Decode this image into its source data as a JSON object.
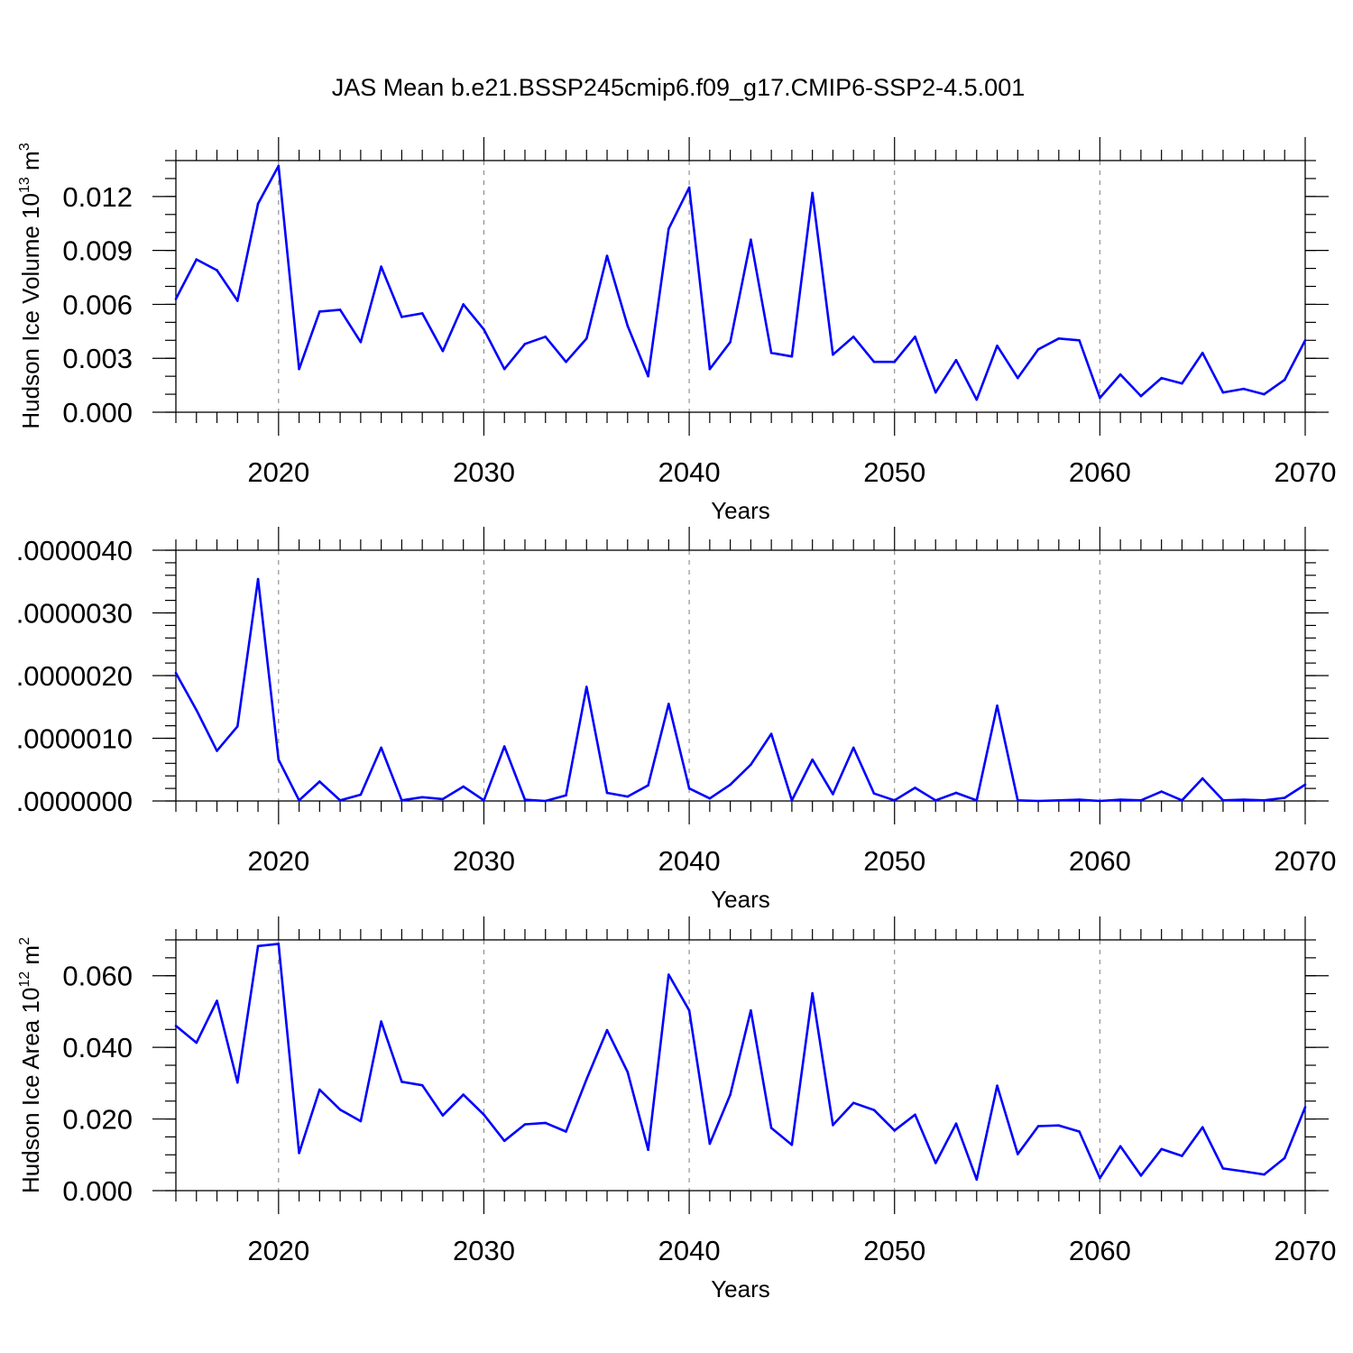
{
  "title": "JAS Mean b.e21.BSSP245cmip6.f09_g17.CMIP6-SSP2-4.5.001",
  "colors": {
    "series": "#0000ff",
    "frame": "#000000",
    "grid": "#888888"
  },
  "chart_data": [
    {
      "type": "line",
      "ylabel": {
        "text": "Hudson Ice Volume 10",
        "sup": "13",
        "unit": " m",
        "unit_sup": "3"
      },
      "xlabel": "Years",
      "xlim": [
        2015,
        2070
      ],
      "ylim": [
        0.0,
        0.014
      ],
      "yticks": [
        0.0,
        0.003,
        0.006,
        0.009,
        0.012
      ],
      "ytick_labels": [
        "0.000",
        "0.003",
        "0.006",
        "0.009",
        "0.012"
      ],
      "yminor_step": 0.001,
      "xticks": [
        2020,
        2030,
        2040,
        2050,
        2060,
        2070
      ],
      "xtick_labels": [
        "2020",
        "2030",
        "2040",
        "2050",
        "2060",
        "2070"
      ],
      "xgrid": [
        2020,
        2030,
        2040,
        2050,
        2060
      ],
      "x": [
        2015,
        2016,
        2017,
        2018,
        2019,
        2020,
        2021,
        2022,
        2023,
        2024,
        2025,
        2026,
        2027,
        2028,
        2029,
        2030,
        2031,
        2032,
        2033,
        2034,
        2035,
        2036,
        2037,
        2038,
        2039,
        2040,
        2041,
        2042,
        2043,
        2044,
        2045,
        2046,
        2047,
        2048,
        2049,
        2050,
        2051,
        2052,
        2053,
        2054,
        2055,
        2056,
        2057,
        2058,
        2059,
        2060,
        2061,
        2062,
        2063,
        2064,
        2065,
        2066,
        2067,
        2068,
        2069,
        2070
      ],
      "values": [
        0.0063,
        0.0085,
        0.0079,
        0.0062,
        0.0116,
        0.0137,
        0.0024,
        0.0056,
        0.0057,
        0.0039,
        0.0081,
        0.0053,
        0.0055,
        0.0034,
        0.006,
        0.0046,
        0.0024,
        0.0038,
        0.0042,
        0.0028,
        0.0041,
        0.0087,
        0.0048,
        0.002,
        0.0102,
        0.0125,
        0.0024,
        0.0039,
        0.0096,
        0.0033,
        0.0031,
        0.0122,
        0.0032,
        0.0042,
        0.0028,
        0.0028,
        0.0042,
        0.0011,
        0.0029,
        0.0007,
        0.0037,
        0.0019,
        0.0035,
        0.0041,
        0.004,
        0.0008,
        0.0021,
        0.0009,
        0.0019,
        0.0016,
        0.0033,
        0.0011,
        0.0013,
        0.001,
        0.0018,
        0.004
      ]
    },
    {
      "type": "line",
      "ylabel": null,
      "xlabel": "Years",
      "xlim": [
        2015,
        2070
      ],
      "ylim": [
        0.0,
        4e-06
      ],
      "yticks": [
        0.0,
        1e-06,
        2e-06,
        3e-06,
        4e-06
      ],
      "ytick_labels": [
        ".0000000",
        ".0000010",
        ".0000020",
        ".0000030",
        ".0000040"
      ],
      "yminor_step": 2e-07,
      "xticks": [
        2020,
        2030,
        2040,
        2050,
        2060,
        2070
      ],
      "xtick_labels": [
        "2020",
        "2030",
        "2040",
        "2050",
        "2060",
        "2070"
      ],
      "xgrid": [
        2020,
        2030,
        2040,
        2050,
        2060
      ],
      "x": [
        2015,
        2016,
        2017,
        2018,
        2019,
        2020,
        2021,
        2022,
        2023,
        2024,
        2025,
        2026,
        2027,
        2028,
        2029,
        2030,
        2031,
        2032,
        2033,
        2034,
        2035,
        2036,
        2037,
        2038,
        2039,
        2040,
        2041,
        2042,
        2043,
        2044,
        2045,
        2046,
        2047,
        2048,
        2049,
        2050,
        2051,
        2052,
        2053,
        2054,
        2055,
        2056,
        2057,
        2058,
        2059,
        2060,
        2061,
        2062,
        2063,
        2064,
        2065,
        2066,
        2067,
        2068,
        2069,
        2070
      ],
      "values": [
        2.04e-06,
        1.45e-06,
        8e-07,
        1.19e-06,
        3.54e-06,
        6.6e-07,
        1e-08,
        3.1e-07,
        1e-08,
        1e-07,
        8.5e-07,
        1e-08,
        6e-08,
        3e-08,
        2.3e-07,
        1e-08,
        8.7e-07,
        2e-08,
        0.0,
        9e-08,
        1.82e-06,
        1.3e-07,
        7e-08,
        2.5e-07,
        1.55e-06,
        2e-07,
        4e-08,
        2.6e-07,
        5.8e-07,
        1.07e-06,
        1e-08,
        6.6e-07,
        1.1e-07,
        8.5e-07,
        1.2e-07,
        1e-08,
        2.1e-07,
        1e-08,
        1.3e-07,
        1e-08,
        1.52e-06,
        1e-08,
        0.0,
        1e-08,
        2e-08,
        0.0,
        2e-08,
        1e-08,
        1.5e-07,
        1e-08,
        3.6e-07,
        1e-08,
        2e-08,
        1e-08,
        5e-08,
        2.6e-07
      ]
    },
    {
      "type": "line",
      "ylabel": {
        "text": "Hudson Ice Area 10",
        "sup": "12",
        "unit": " m",
        "unit_sup": "2"
      },
      "xlabel": "Years",
      "xlim": [
        2015,
        2070
      ],
      "ylim": [
        0.0,
        0.07
      ],
      "yticks": [
        0.0,
        0.02,
        0.04,
        0.06
      ],
      "ytick_labels": [
        "0.000",
        "0.020",
        "0.040",
        "0.060"
      ],
      "yminor_step": 0.005,
      "xticks": [
        2020,
        2030,
        2040,
        2050,
        2060,
        2070
      ],
      "xtick_labels": [
        "2020",
        "2030",
        "2040",
        "2050",
        "2060",
        "2070"
      ],
      "xgrid": [
        2020,
        2030,
        2040,
        2050,
        2060
      ],
      "x": [
        2015,
        2016,
        2017,
        2018,
        2019,
        2020,
        2021,
        2022,
        2023,
        2024,
        2025,
        2026,
        2027,
        2028,
        2029,
        2030,
        2031,
        2032,
        2033,
        2034,
        2035,
        2036,
        2037,
        2038,
        2039,
        2040,
        2041,
        2042,
        2043,
        2044,
        2045,
        2046,
        2047,
        2048,
        2049,
        2050,
        2051,
        2052,
        2053,
        2054,
        2055,
        2056,
        2057,
        2058,
        2059,
        2060,
        2061,
        2062,
        2063,
        2064,
        2065,
        2066,
        2067,
        2068,
        2069,
        2070
      ],
      "values": [
        0.046,
        0.0413,
        0.053,
        0.0302,
        0.0683,
        0.0689,
        0.0105,
        0.0282,
        0.0226,
        0.0194,
        0.0472,
        0.0304,
        0.0294,
        0.021,
        0.0268,
        0.0212,
        0.0139,
        0.0185,
        0.0189,
        0.0165,
        0.0311,
        0.0448,
        0.0331,
        0.0114,
        0.0603,
        0.0503,
        0.0131,
        0.0268,
        0.0503,
        0.0175,
        0.0128,
        0.0551,
        0.0183,
        0.0245,
        0.0225,
        0.0168,
        0.0212,
        0.0077,
        0.0187,
        0.0031,
        0.0293,
        0.0102,
        0.018,
        0.0182,
        0.0165,
        0.0035,
        0.0124,
        0.0042,
        0.0116,
        0.0097,
        0.0177,
        0.0062,
        0.0054,
        0.0045,
        0.0091,
        0.0233
      ]
    }
  ]
}
